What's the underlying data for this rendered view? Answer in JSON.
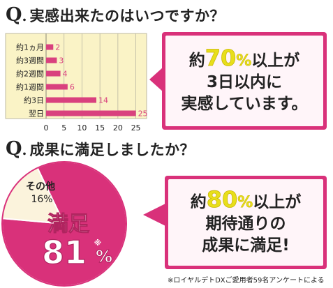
{
  "q1": {
    "q": "Q",
    "dot": ".",
    "text": "実感出来たのはいつですか？"
  },
  "q2": {
    "q": "Q",
    "dot": ".",
    "text": "成果に満足しましたか？"
  },
  "callout1": {
    "line1_pre": "約",
    "line1_pct": "70",
    "line1_unit": "%",
    "line1_post": "以上が",
    "line2": "3日以内に",
    "line3": "実感しています。"
  },
  "callout2": {
    "line1_pre": "約",
    "line1_pct": "80",
    "line1_unit": "%",
    "line1_post": "以上が",
    "line2": "期待通りの",
    "line3": "成果に満足!"
  },
  "pie_labels": {
    "other_label": "その他",
    "other_value": "16%",
    "main_label": "満足",
    "main_value": "81",
    "main_mark": "※",
    "main_unit": "%"
  },
  "footnote": "※ロイヤルデトDXご愛用者59名アンケートによる",
  "colors": {
    "accent": "#d9317a",
    "bar": "#d9417e",
    "chart_bg": "#faf3c6",
    "highlight": "#e8df1a"
  },
  "chart_data": [
    {
      "type": "bar",
      "orientation": "horizontal",
      "categories": [
        "約1ヵ月",
        "約3週間",
        "約2週間",
        "約1週間",
        "約3日",
        "翌日"
      ],
      "values": [
        2,
        3,
        4,
        6,
        14,
        25
      ],
      "xticks": [
        0,
        5,
        10,
        15,
        20,
        25
      ],
      "xlim": [
        0,
        28
      ],
      "grid": true
    },
    {
      "type": "pie",
      "categories": [
        "満足",
        "その他"
      ],
      "values": [
        81,
        16
      ]
    }
  ]
}
